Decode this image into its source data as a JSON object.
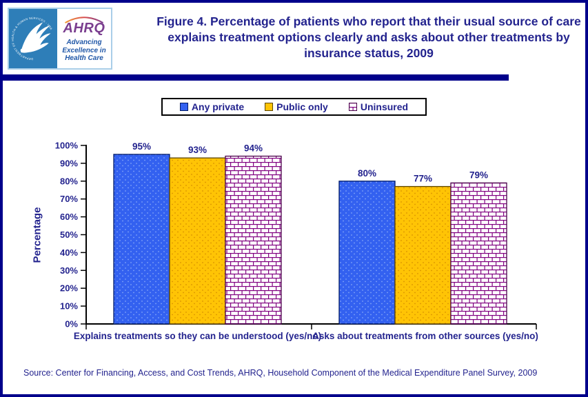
{
  "page": {
    "background": "#FFFFFF",
    "frame_border_color": "#00008B",
    "text_color": "#23238E"
  },
  "header": {
    "logo": {
      "seal_text": "DEPARTMENT OF HEALTH & HUMAN SERVICES - USA",
      "ahrq_acronym": "AHRQ",
      "tagline": "Advancing Excellence in Health Care"
    }
  },
  "chart_data": {
    "type": "bar",
    "title": "Figure 4. Percentage of patients who report that their usual source of care explains treatment options clearly and asks about other treatments by insurance status, 2009",
    "categories": [
      "Explains treatments so they can be understood (yes/no)",
      "Asks about treatments from other sources (yes/no)"
    ],
    "series": [
      {
        "name": "Any private",
        "values": [
          95,
          80
        ],
        "pattern": "dots",
        "fill": "#3361F0",
        "dot_color": "#82A4F8",
        "border": "#001A66"
      },
      {
        "name": "Public only",
        "values": [
          93,
          77
        ],
        "pattern": "dots",
        "fill": "#FFC405",
        "dot_color": "#D89200",
        "border": "#5C4500"
      },
      {
        "name": "Uninsured",
        "values": [
          94,
          79
        ],
        "pattern": "brick",
        "fill": "#FFFFFF",
        "line_color": "#800080",
        "border": "#4A004A"
      }
    ],
    "ylabel": "Percentage",
    "ylim": [
      0,
      100
    ],
    "ytick_step": 10,
    "tick_suffix": "%",
    "value_suffix": "%",
    "legend_position": "top-center",
    "grid": false,
    "axis_color": "#000000",
    "label_color": "#23238E"
  },
  "source_note": "Source: Center for Financing, Access, and Cost Trends, AHRQ, Household Component of the Medical Expenditure Panel Survey, 2009"
}
